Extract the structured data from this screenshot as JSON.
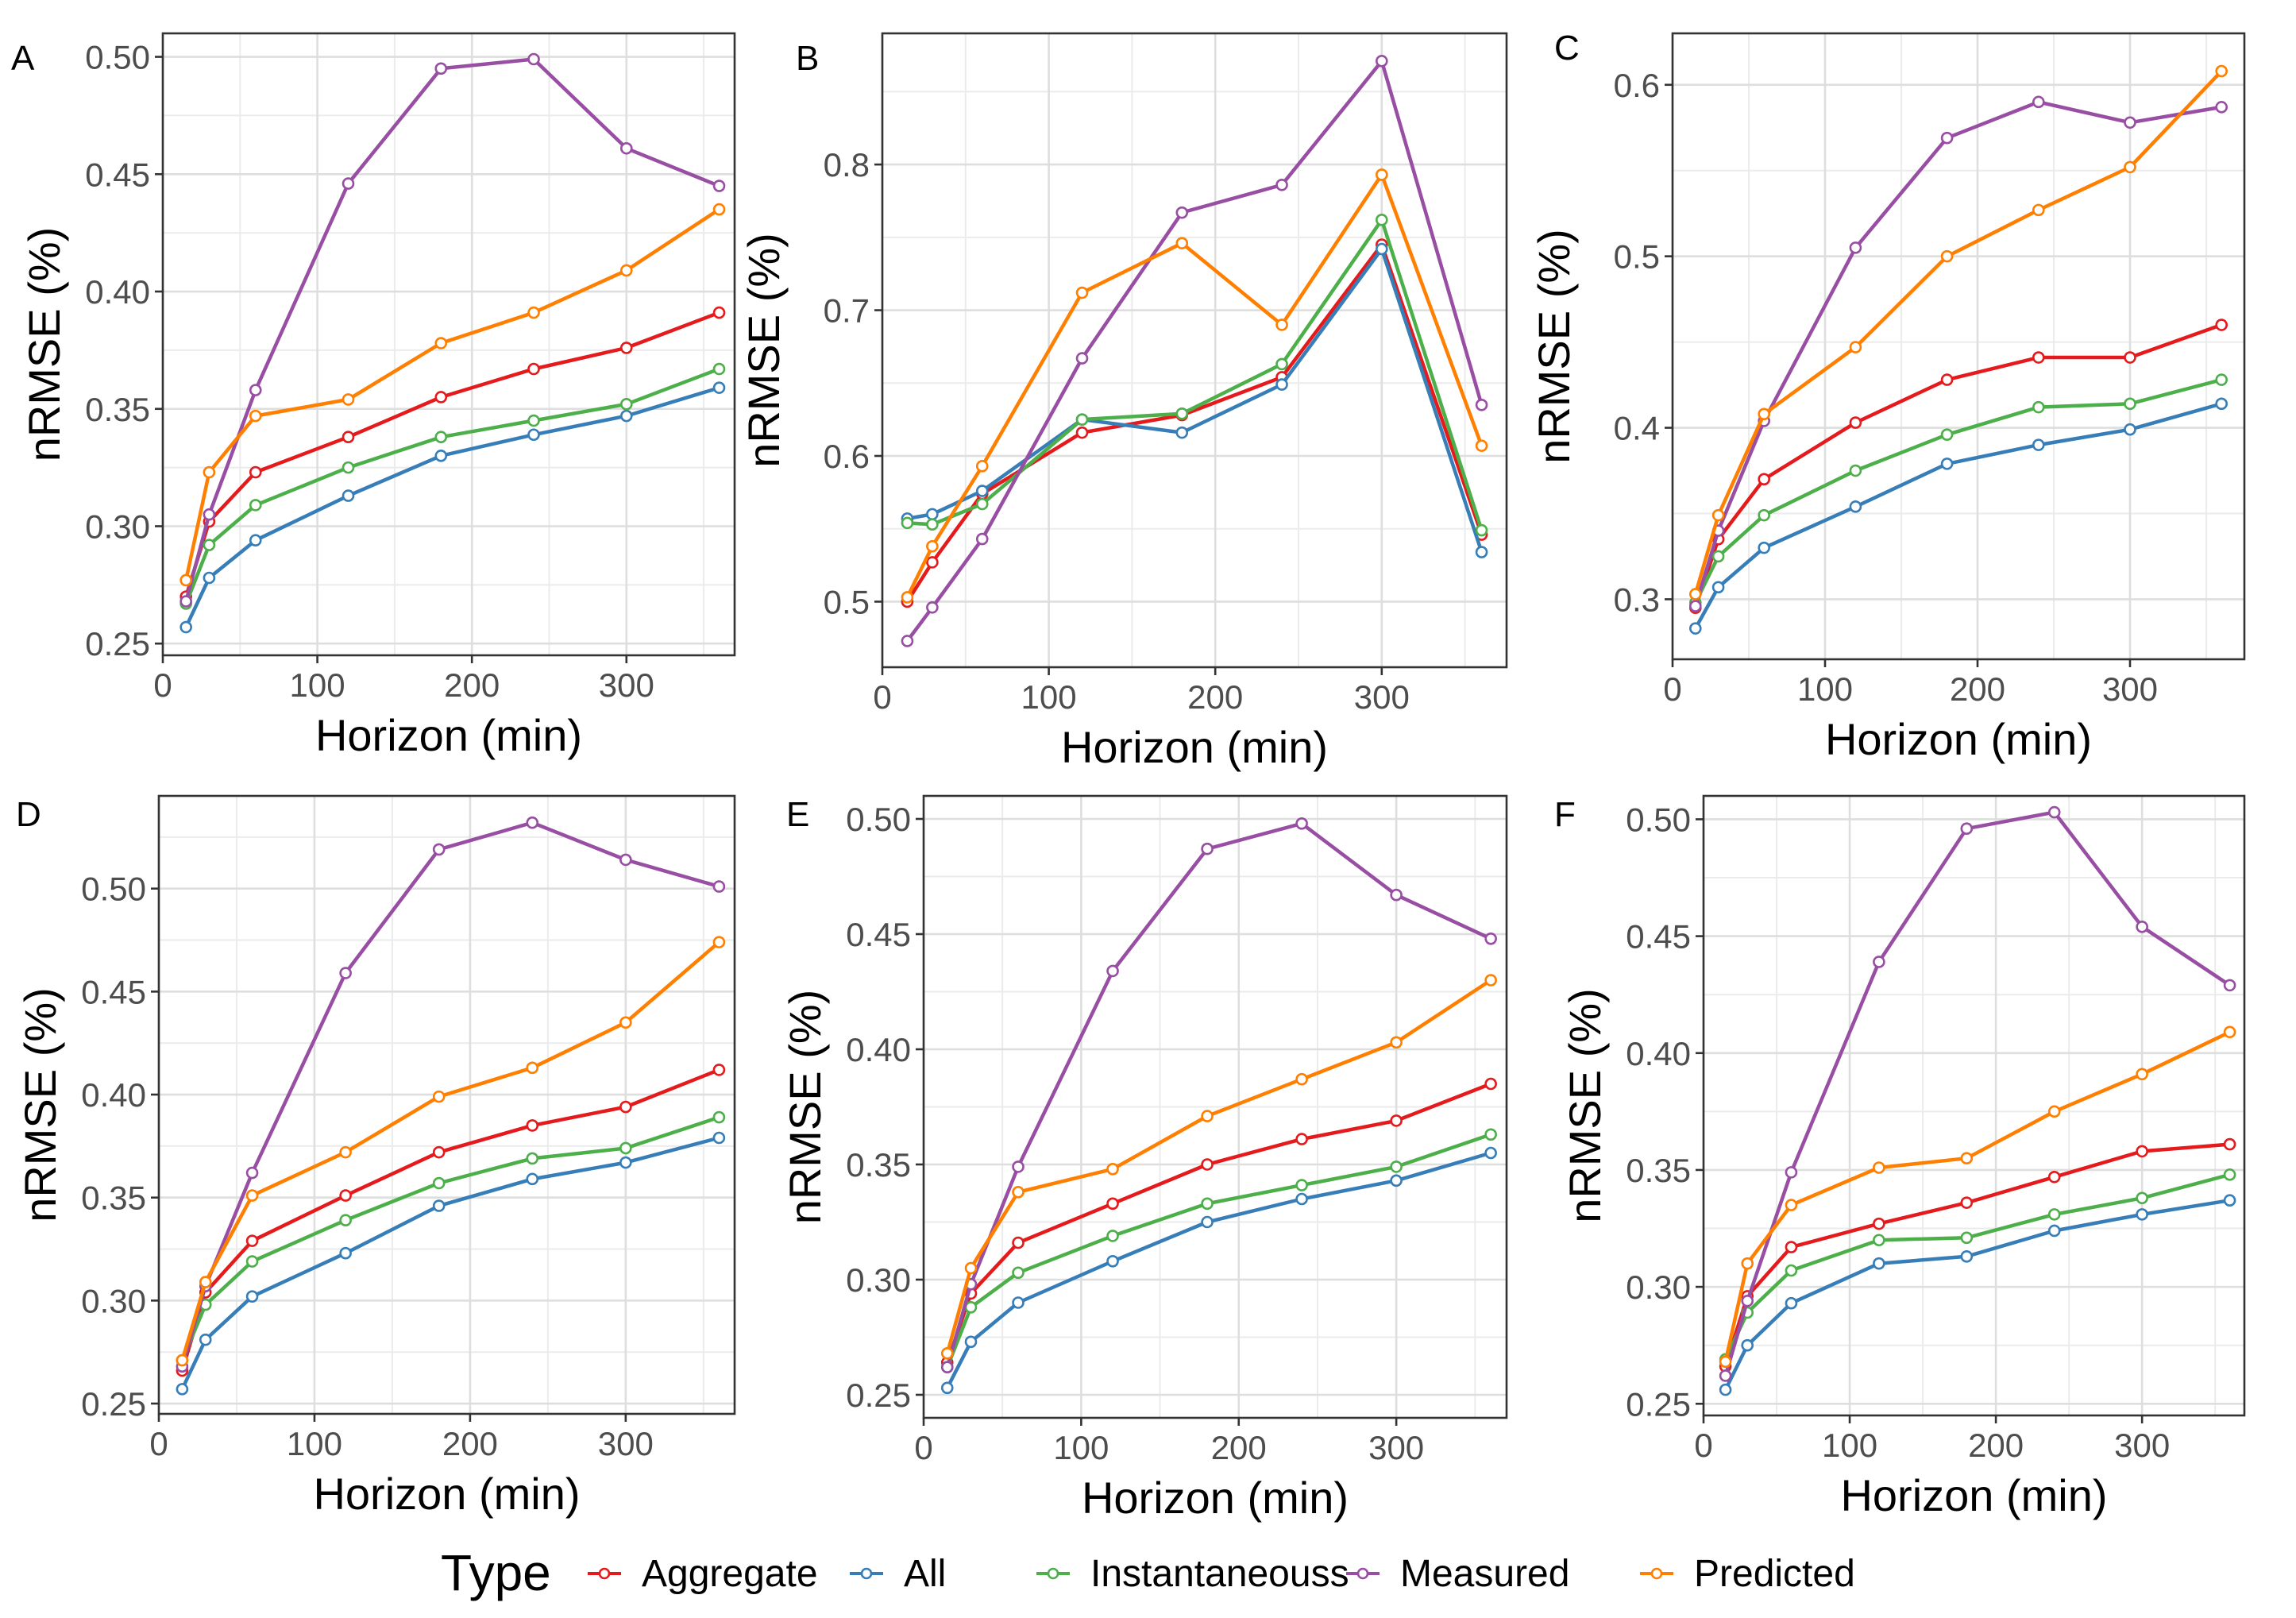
{
  "legend": {
    "title": "Type",
    "entries": [
      {
        "name": "Aggregate",
        "color": "#E41A1C"
      },
      {
        "name": "All",
        "color": "#377EB8"
      },
      {
        "name": "Instantaneouss",
        "color": "#4DAF4A"
      },
      {
        "name": "Measured",
        "color": "#984EA3"
      },
      {
        "name": "Predicted",
        "color": "#FF7F00"
      }
    ]
  },
  "chart_data": [
    {
      "panel": "A",
      "type": "line",
      "xlabel": "Horizon (min)",
      "ylabel": "nRMSE (%)",
      "x": [
        15,
        30,
        60,
        120,
        180,
        240,
        300,
        360
      ],
      "xlim": [
        0,
        370
      ],
      "ylim": [
        0.245,
        0.51
      ],
      "xticks": [
        0,
        100,
        200,
        300
      ],
      "yticks": [
        0.25,
        0.3,
        0.35,
        0.4,
        0.45,
        0.5
      ],
      "ytick_labels": [
        "0.25",
        "0.30",
        "0.35",
        "0.40",
        "0.45",
        "0.50"
      ],
      "series": [
        {
          "name": "Aggregate",
          "values": [
            0.27,
            0.302,
            0.323,
            0.338,
            0.355,
            0.367,
            0.376,
            0.391
          ]
        },
        {
          "name": "All",
          "values": [
            0.257,
            0.278,
            0.294,
            0.313,
            0.33,
            0.339,
            0.347,
            0.359
          ]
        },
        {
          "name": "Instantaneouss",
          "values": [
            0.267,
            0.292,
            0.309,
            0.325,
            0.338,
            0.345,
            0.352,
            0.367
          ]
        },
        {
          "name": "Measured",
          "values": [
            0.268,
            0.305,
            0.358,
            0.446,
            0.495,
            0.499,
            0.461,
            0.445
          ]
        },
        {
          "name": "Predicted",
          "values": [
            0.277,
            0.323,
            0.347,
            0.354,
            0.378,
            0.391,
            0.409,
            0.435
          ]
        }
      ]
    },
    {
      "panel": "B",
      "type": "line",
      "xlabel": "Horizon (min)",
      "ylabel": "nRMSE (%)",
      "x": [
        15,
        30,
        60,
        120,
        180,
        240,
        300,
        360
      ],
      "xlim": [
        0,
        375
      ],
      "ylim": [
        0.455,
        0.89
      ],
      "xticks": [
        0,
        100,
        200,
        300
      ],
      "yticks": [
        0.5,
        0.6,
        0.7,
        0.8
      ],
      "ytick_labels": [
        "0.5",
        "0.6",
        "0.7",
        "0.8"
      ],
      "series": [
        {
          "name": "Aggregate",
          "values": [
            0.5,
            0.527,
            0.574,
            0.616,
            0.628,
            0.654,
            0.745,
            0.546
          ]
        },
        {
          "name": "All",
          "values": [
            0.557,
            0.56,
            0.576,
            0.625,
            0.616,
            0.649,
            0.742,
            0.534
          ]
        },
        {
          "name": "Instantaneouss",
          "values": [
            0.554,
            0.553,
            0.567,
            0.625,
            0.629,
            0.663,
            0.762,
            0.549
          ]
        },
        {
          "name": "Measured",
          "values": [
            0.473,
            0.496,
            0.543,
            0.667,
            0.767,
            0.786,
            0.871,
            0.635
          ]
        },
        {
          "name": "Predicted",
          "values": [
            0.503,
            0.538,
            0.593,
            0.712,
            0.746,
            0.69,
            0.793,
            0.607
          ]
        }
      ]
    },
    {
      "panel": "C",
      "type": "line",
      "xlabel": "Horizon (min)",
      "ylabel": "nRMSE (%)",
      "x": [
        15,
        30,
        60,
        120,
        180,
        240,
        300,
        360
      ],
      "xlim": [
        0,
        375
      ],
      "ylim": [
        0.265,
        0.63
      ],
      "xticks": [
        0,
        100,
        200,
        300
      ],
      "yticks": [
        0.3,
        0.4,
        0.5,
        0.6
      ],
      "ytick_labels": [
        "0.3",
        "0.4",
        "0.5",
        "0.6"
      ],
      "series": [
        {
          "name": "Aggregate",
          "values": [
            0.295,
            0.335,
            0.37,
            0.403,
            0.428,
            0.441,
            0.441,
            0.46
          ]
        },
        {
          "name": "All",
          "values": [
            0.283,
            0.307,
            0.33,
            0.354,
            0.379,
            0.39,
            0.399,
            0.414
          ]
        },
        {
          "name": "Instantaneouss",
          "values": [
            0.298,
            0.325,
            0.349,
            0.375,
            0.396,
            0.412,
            0.414,
            0.428
          ]
        },
        {
          "name": "Measured",
          "values": [
            0.296,
            0.34,
            0.404,
            0.505,
            0.569,
            0.59,
            0.578,
            0.587
          ]
        },
        {
          "name": "Predicted",
          "values": [
            0.303,
            0.349,
            0.408,
            0.447,
            0.5,
            0.527,
            0.552,
            0.608
          ]
        }
      ]
    },
    {
      "panel": "D",
      "type": "line",
      "xlabel": "Horizon (min)",
      "ylabel": "nRMSE (%)",
      "x": [
        15,
        30,
        60,
        120,
        180,
        240,
        300,
        360
      ],
      "xlim": [
        0,
        370
      ],
      "ylim": [
        0.245,
        0.545
      ],
      "xticks": [
        0,
        100,
        200,
        300
      ],
      "yticks": [
        0.25,
        0.3,
        0.35,
        0.4,
        0.45,
        0.5
      ],
      "ytick_labels": [
        "0.25",
        "0.30",
        "0.35",
        "0.40",
        "0.45",
        "0.50"
      ],
      "series": [
        {
          "name": "Aggregate",
          "values": [
            0.266,
            0.304,
            0.329,
            0.351,
            0.372,
            0.385,
            0.394,
            0.412
          ]
        },
        {
          "name": "All",
          "values": [
            0.257,
            0.281,
            0.302,
            0.323,
            0.346,
            0.359,
            0.367,
            0.379
          ]
        },
        {
          "name": "Instantaneouss",
          "values": [
            0.271,
            0.298,
            0.319,
            0.339,
            0.357,
            0.369,
            0.374,
            0.389
          ]
        },
        {
          "name": "Measured",
          "values": [
            0.268,
            0.307,
            0.362,
            0.459,
            0.519,
            0.532,
            0.514,
            0.501
          ]
        },
        {
          "name": "Predicted",
          "values": [
            0.271,
            0.309,
            0.351,
            0.372,
            0.399,
            0.413,
            0.435,
            0.474
          ]
        }
      ]
    },
    {
      "panel": "E",
      "type": "line",
      "xlabel": "Horizon (min)",
      "ylabel": "nRMSE (%)",
      "x": [
        15,
        30,
        60,
        120,
        180,
        240,
        300,
        360
      ],
      "xlim": [
        0,
        370
      ],
      "ylim": [
        0.24,
        0.51
      ],
      "xticks": [
        0,
        100,
        200,
        300
      ],
      "yticks": [
        0.25,
        0.3,
        0.35,
        0.4,
        0.45,
        0.5
      ],
      "ytick_labels": [
        "0.25",
        "0.30",
        "0.35",
        "0.40",
        "0.45",
        "0.50"
      ],
      "series": [
        {
          "name": "Aggregate",
          "values": [
            0.264,
            0.294,
            0.316,
            0.333,
            0.35,
            0.361,
            0.369,
            0.385
          ]
        },
        {
          "name": "All",
          "values": [
            0.253,
            0.273,
            0.29,
            0.308,
            0.325,
            0.335,
            0.343,
            0.355
          ]
        },
        {
          "name": "Instantaneouss",
          "values": [
            0.262,
            0.288,
            0.303,
            0.319,
            0.333,
            0.341,
            0.349,
            0.363
          ]
        },
        {
          "name": "Measured",
          "values": [
            0.262,
            0.298,
            0.349,
            0.434,
            0.487,
            0.498,
            0.467,
            0.448
          ]
        },
        {
          "name": "Predicted",
          "values": [
            0.268,
            0.305,
            0.338,
            0.348,
            0.371,
            0.387,
            0.403,
            0.43
          ]
        }
      ]
    },
    {
      "panel": "F",
      "type": "line",
      "xlabel": "Horizon (min)",
      "ylabel": "nRMSE (%)",
      "x": [
        15,
        30,
        60,
        120,
        180,
        240,
        300,
        360
      ],
      "xlim": [
        0,
        370
      ],
      "ylim": [
        0.245,
        0.51
      ],
      "xticks": [
        0,
        100,
        200,
        300
      ],
      "yticks": [
        0.25,
        0.3,
        0.35,
        0.4,
        0.45,
        0.5
      ],
      "ytick_labels": [
        "0.25",
        "0.30",
        "0.35",
        "0.40",
        "0.45",
        "0.50"
      ],
      "series": [
        {
          "name": "Aggregate",
          "values": [
            0.266,
            0.296,
            0.317,
            0.327,
            0.336,
            0.347,
            0.358,
            0.361
          ]
        },
        {
          "name": "All",
          "values": [
            0.256,
            0.275,
            0.293,
            0.31,
            0.313,
            0.324,
            0.331,
            0.337
          ]
        },
        {
          "name": "Instantaneouss",
          "values": [
            0.269,
            0.289,
            0.307,
            0.32,
            0.321,
            0.331,
            0.338,
            0.348
          ]
        },
        {
          "name": "Measured",
          "values": [
            0.262,
            0.294,
            0.349,
            0.439,
            0.496,
            0.503,
            0.454,
            0.429
          ]
        },
        {
          "name": "Predicted",
          "values": [
            0.268,
            0.31,
            0.335,
            0.351,
            0.355,
            0.375,
            0.391,
            0.409
          ]
        }
      ]
    }
  ]
}
